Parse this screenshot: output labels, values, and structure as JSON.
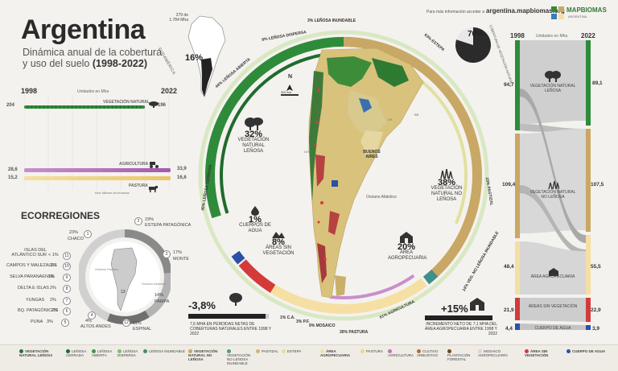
{
  "header": {
    "title": "Argentina",
    "subtitle_line1": "Dinámica anual de la cobertura",
    "subtitle_line2": "y uso del suelo",
    "subtitle_years": "(1998-2022)",
    "more_info": "Para más información acceder a",
    "site": "argentina.mapbiomas.org",
    "brand": "MAPBIOMAS",
    "brand_sub": "ARGENTINA"
  },
  "area_note": {
    "value": "279 de",
    "unit": "1.784 Mha",
    "pct": "16%",
    "region": "SUDAMÉRICA"
  },
  "linechart": {
    "start_year": "1998",
    "end_year": "2022",
    "units": "Unidades en Mha",
    "footnote": "Mha: Millones de hectáreas",
    "series": [
      {
        "name": "VEGETACIÓN NATURAL",
        "start": "204",
        "end": "196",
        "color": "#2e8b3a"
      },
      {
        "name": "AGRICULTURA",
        "start": "28,6",
        "end": "33,9",
        "color": "#b36fb8"
      },
      {
        "name": "PASTURA",
        "start": "15,2",
        "end": "16,6",
        "color": "#f0d48a"
      }
    ]
  },
  "ecoregions": {
    "title": "ECORREGIONES",
    "items": [
      {
        "n": "1",
        "label": "CHACO",
        "pct": "23%"
      },
      {
        "n": "2",
        "label": "ESTEPA PATAGÓNICA",
        "pct": "19%"
      },
      {
        "n": "3",
        "label": "MONTE",
        "pct": "17%"
      },
      {
        "n": "4",
        "label": "ALTOS ANDES",
        "pct": "4%"
      },
      {
        "n": "5",
        "label": "PUNA",
        "pct": "3%"
      },
      {
        "n": "6",
        "label": "BQ. PATAGÓNICOS",
        "pct": "2%"
      },
      {
        "n": "7",
        "label": "YUNGAS",
        "pct": "2%"
      },
      {
        "n": "8",
        "label": "DELTA E ISLAS",
        "pct": "2%"
      },
      {
        "n": "9",
        "label": "SELVA PARANAENSE",
        "pct": "1%"
      },
      {
        "n": "10",
        "label": "CAMPOS Y MALEZALES",
        "pct": "1%"
      },
      {
        "n": "11",
        "label": "ISLAS DEL ATLÁNTICO SUR",
        "pct": "< 1%"
      },
      {
        "n": "12",
        "label": "ESPINAL",
        "pct": "11%"
      },
      {
        "n": "13",
        "label": "PAMPA",
        "pct": "14%"
      }
    ],
    "map_labels": {
      "pacific": "Océano Pacífico",
      "atlantic": "Océano Atlántico"
    }
  },
  "ring_labels": {
    "lenosa_abierta": "44% LEÑOSA ABIERTA",
    "lenosa_dispersa": "8% LEÑOSA DISPERSA",
    "lenosa_inundable": "3% LEÑOSA INUNDABLE",
    "estepa": "63% ESTEPA",
    "lenosa_cerrada": "45% LEÑOSA CERRADA",
    "pastizal": "23% PASTIZAL",
    "no_lenosa_inundable": "14% VEG. NO LEÑOSA INUNDABLE",
    "agricultura": "61% AGRICULTURA",
    "pastura": "30% PASTURA",
    "mosaico": "9% MOSAICO",
    "ca": "1% C.A.",
    "pf": "3% P.F.",
    "pct70": "70%",
    "pct70_label": "COBERTURA DE VEGETACIÓN NATURAL"
  },
  "stats": {
    "lenosa": {
      "pct": "32%",
      "label": "VEGETACIÓN NATURAL LEÑOSA"
    },
    "no_lenosa": {
      "pct": "38%",
      "label": "VEGETACIÓN NATURAL NO LEÑOSA"
    },
    "agua": {
      "pct": "1%",
      "label": "CUERPOS DE AGUA"
    },
    "sin_veg": {
      "pct": "8%",
      "label": "ÁREAS SIN VEGETACIÓN"
    },
    "agro": {
      "pct": "20%",
      "label": "ÁREA AGROPECUARIA"
    }
  },
  "map": {
    "scale": "300 km",
    "north": "N",
    "buenos_aires": "BUENOS AIRES",
    "atlantic": "Océano Atlántico",
    "countries": [
      "BO",
      "PY",
      "BR",
      "CH",
      "UY"
    ]
  },
  "loss": {
    "value": "-3,8",
    "unit": "%",
    "text": "7,6 MHA EN PÉRDIDAS NETAS DE COBERTURAS NATURALES ENTRE 1998 Y 2022"
  },
  "gain": {
    "value": "+15",
    "unit": "%",
    "text": "INCREMENTO NETO DE 7,1 MHA DEL ÁREA AGROPECUARIA ENTRE 1998 Y 2022"
  },
  "sankey": {
    "start_year": "1998",
    "end_year": "2022",
    "units": "Unidades en Mha",
    "rows": [
      {
        "label": "VEGETACIÓN NATURAL LEÑOSA",
        "start": "94,7",
        "end": "89,1",
        "color": "#2e8b3a"
      },
      {
        "label": "VEGETACIÓN NATURAL NO LEÑOSA",
        "start": "109,4",
        "end": "107,5",
        "color": "#c9a765"
      },
      {
        "label": "ÁREA AGROPECUARIA",
        "start": "48,4",
        "end": "55,5",
        "color": "#f5dfa2"
      },
      {
        "label": "ÁREAS SIN VEGETACIÓN",
        "start": "21,9",
        "end": "22,9",
        "color": "#d33b3b"
      },
      {
        "label": "CUERPO DE AGUA",
        "start": "4,4",
        "end": "3,9",
        "color": "#2c4fa8"
      }
    ]
  },
  "legend": [
    {
      "label": "VEGETACIÓN NATURAL LEÑOSA",
      "color": "#1f7a34",
      "bold": true
    },
    {
      "label": "LEÑOSA CERRADA",
      "color": "#1f6b2e"
    },
    {
      "label": "LEÑOSA ABIERTA",
      "color": "#3b9a48"
    },
    {
      "label": "LEÑOSA DISPERSA",
      "color": "#7cbf6a"
    },
    {
      "label": "LEÑOSA INUNDABLE",
      "color": "#3f8f6f"
    },
    {
      "label": "VEGETACIÓN NATURAL NO LEÑOSA",
      "color": "#c9a765",
      "bold": true
    },
    {
      "label": "VEGETACIÓN NO LEÑOSA INUNDABLE",
      "color": "#4f9a8a"
    },
    {
      "label": "PASTIZAL",
      "color": "#d3b66f"
    },
    {
      "label": "ESTEPA",
      "color": "#e2e0a0"
    },
    {
      "label": "ÁREA AGROPECUARIA",
      "color": "#f5dfa2",
      "bold": true
    },
    {
      "label": "PASTURA",
      "color": "#f3d57e"
    },
    {
      "label": "AGRICULTURA",
      "color": "#c472b8"
    },
    {
      "label": "CULTIVO ARBUSTIVO",
      "color": "#b86a3a"
    },
    {
      "label": "PLANTACIÓN FORESTAL",
      "color": "#6a4a1e"
    },
    {
      "label": "MOSAICO AGROPECUARIO",
      "color": "#f0c8e0"
    },
    {
      "label": "ÁREA SIN VEGETACIÓN",
      "color": "#d33b3b",
      "bold": true
    },
    {
      "label": "CUERPO DE AGUA",
      "color": "#2c4fa8",
      "bold": true
    }
  ],
  "colors": {
    "forest": "#2e8b3a",
    "nonwoody": "#c9a765",
    "agro": "#f5dfa2",
    "bare": "#d33b3b",
    "water": "#2c4fa8",
    "teal": "#3f8f8a"
  }
}
